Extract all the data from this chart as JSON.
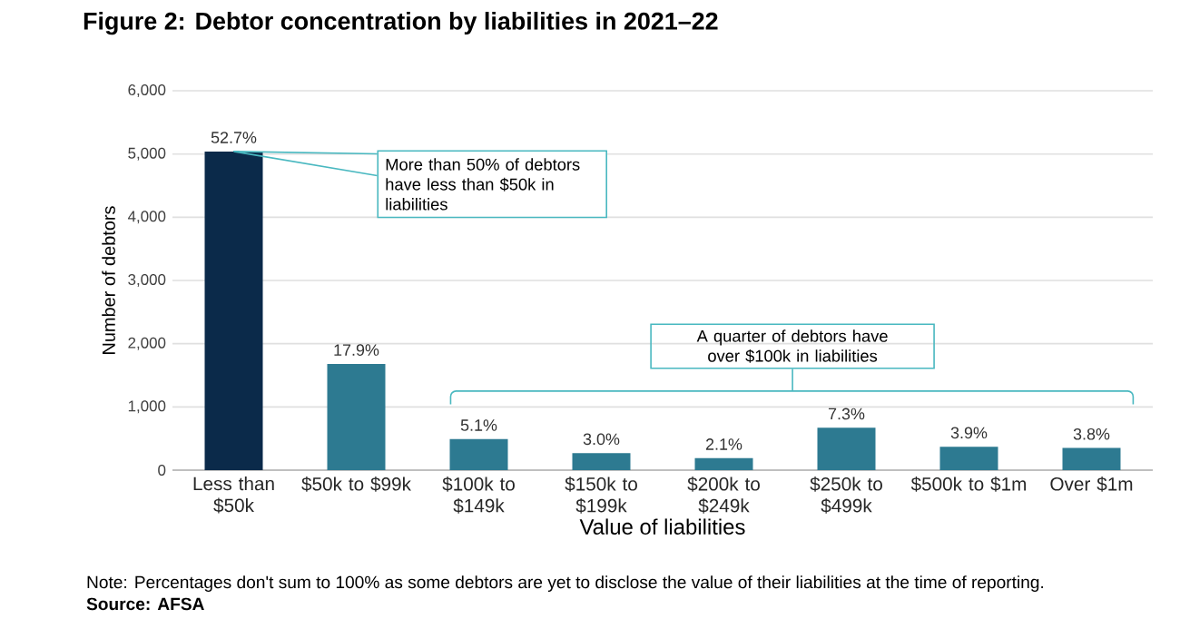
{
  "chart_data": {
    "type": "bar",
    "title": "Figure 2: Debtor concentration by liabilities in 2021–22",
    "xlabel": "Value of liabilities",
    "ylabel": "Number of debtors",
    "categories": [
      "Less than $50k",
      "$50k to $99k",
      "$100k to $149k",
      "$150k to $199k",
      "$200k to $249k",
      "$250k to $499k",
      "$500k to $1m",
      "Over $1m"
    ],
    "values": [
      5040,
      1680,
      490,
      270,
      190,
      670,
      370,
      350
    ],
    "colors": [
      "#0b2a4a",
      "#2d7a91",
      "#2d7a91",
      "#2d7a91",
      "#2d7a91",
      "#2d7a91",
      "#2d7a91",
      "#2d7a91"
    ],
    "ylim": [
      0,
      6000
    ],
    "yticks": [
      0,
      {
        "value": 1000,
        "label": "1,000"
      },
      {
        "value": 2000,
        "label": "2,000"
      },
      {
        "value": 3000,
        "label": "3,000"
      },
      {
        "value": 4000,
        "label": "4,000"
      },
      {
        "value": 5000,
        "label": "5,000"
      },
      {
        "value": 6000,
        "label": "6,000"
      }
    ],
    "grid": "y",
    "annotations": [
      {
        "text": "More than 50% of debtors have less than $50k in liabilities",
        "x": "Less than $50k",
        "y": 5040
      },
      "A quarter of debtors have over $100k in liabilities",
      "Note: Percentages don't sum to 100% as some debtors are yet to disclose the value of their liabilities at the time of reporting.",
      "Source: AFSA",
      {
        "text": "52.7%",
        "x": "Less than $50k",
        "y": 5040
      },
      {
        "text": "17.9%",
        "x": "$50k to $99k",
        "y": 1680
      },
      {
        "text": "5.1%",
        "x": "$100k to $149k",
        "y": 490
      },
      {
        "text": "3.0%",
        "x": "$150k to $199k",
        "y": 270
      },
      {
        "text": "2.1%",
        "x": "$200k to $249k",
        "y": 190
      },
      {
        "text": "7.3%",
        "x": "$250k to $499k",
        "y": 670
      },
      {
        "text": "3.9%",
        "x": "$500k to $1m",
        "y": 370
      },
      {
        "text": "3.8%",
        "x": "Over $1m",
        "y": 350
      }
    ]
  }
}
